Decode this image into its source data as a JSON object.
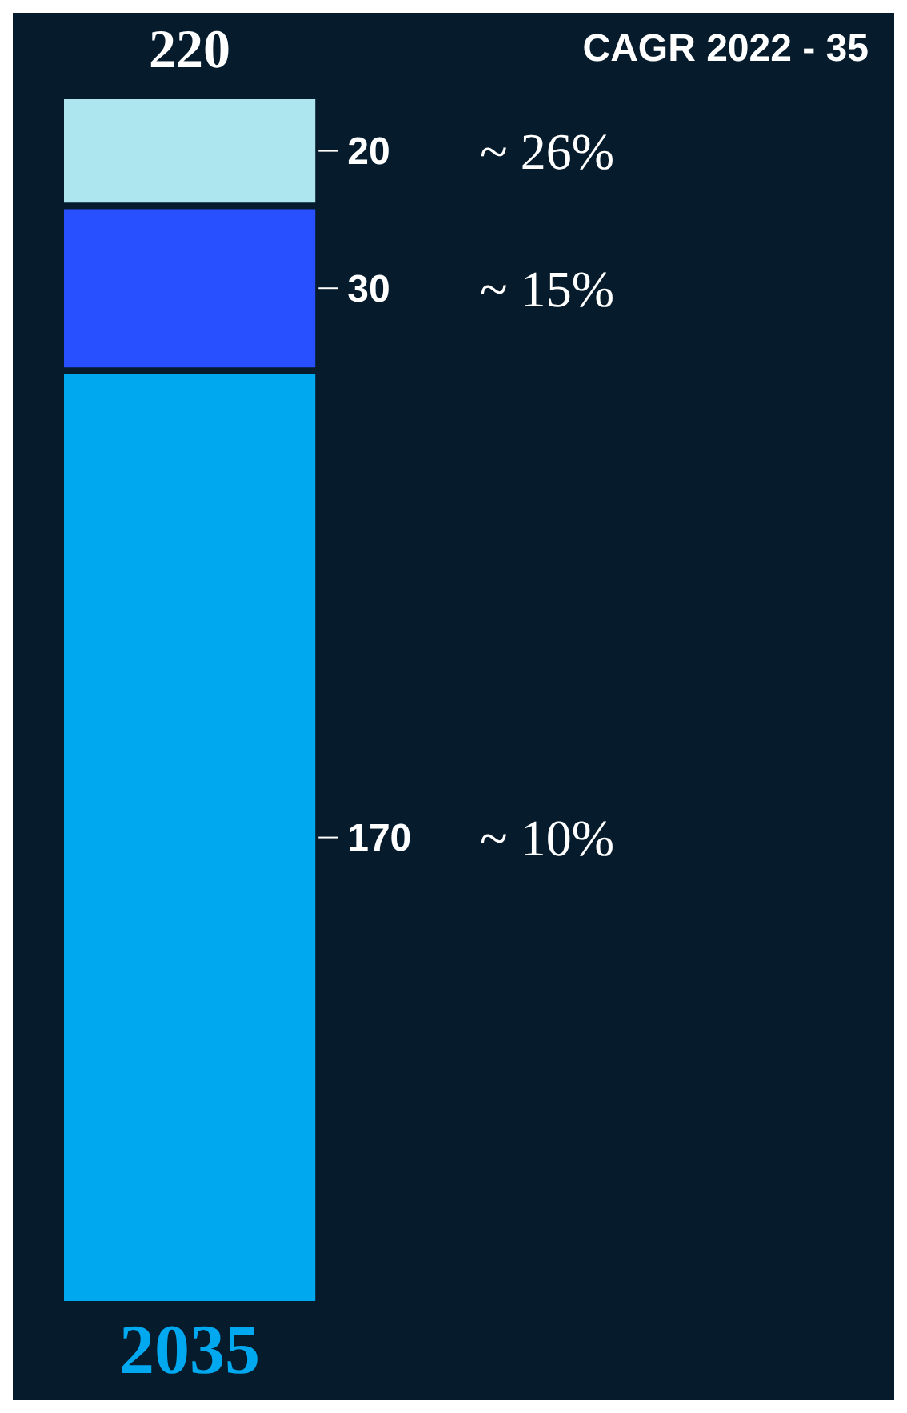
{
  "chart_data": {
    "type": "bar",
    "stacked": true,
    "data_labels": true,
    "categories": [
      "2035"
    ],
    "series": [
      {
        "color": "#00a8f0",
        "values": [
          170
        ]
      },
      {
        "color": "#2850ff",
        "values": [
          30
        ]
      },
      {
        "color": "#aee6f0",
        "values": [
          20
        ]
      }
    ],
    "totals": [
      "220"
    ],
    "annotations": [
      "CAGR 2022 - 35",
      "~ 26%",
      "~ 15%",
      "~ 10%"
    ]
  }
}
